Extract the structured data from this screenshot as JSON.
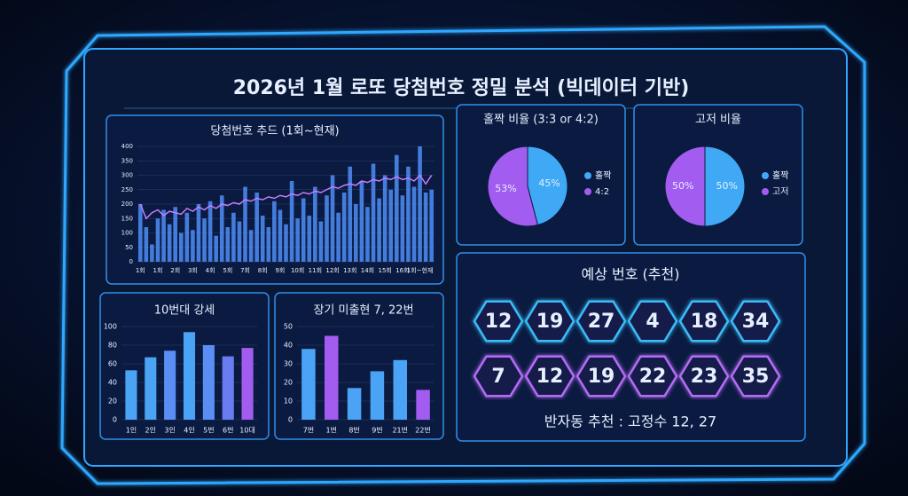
{
  "title": "2026년 1월 로또 당첨번호 정밀 분석 (빅데이터 기반)",
  "chart_data": [
    {
      "type": "combo",
      "title": "당첨번호 추드 (1회~현재)",
      "categories": [
        "1회",
        null,
        null,
        "1회",
        null,
        null,
        "2회",
        null,
        null,
        "3회",
        null,
        null,
        "4회",
        null,
        null,
        "5회",
        null,
        null,
        "7회",
        null,
        null,
        "8회",
        null,
        null,
        "9회",
        null,
        null,
        "10회",
        null,
        null,
        "11회",
        null,
        null,
        "12회",
        null,
        null,
        "13회",
        null,
        null,
        "14회",
        null,
        null,
        "15회",
        null,
        null,
        "16회",
        null,
        null,
        "1회~현재",
        null,
        null
      ],
      "series": [
        {
          "type": "bar",
          "color": "#4f8ef7",
          "values": [
            200,
            120,
            60,
            150,
            180,
            130,
            190,
            100,
            170,
            110,
            200,
            150,
            210,
            90,
            230,
            120,
            170,
            140,
            260,
            110,
            240,
            160,
            120,
            210,
            180,
            130,
            280,
            150,
            220,
            160,
            260,
            140,
            230,
            300,
            170,
            240,
            330,
            200,
            280,
            190,
            340,
            220,
            300,
            250,
            370,
            230,
            330,
            260,
            400,
            240,
            250
          ]
        },
        {
          "type": "line",
          "color": "#c77dff",
          "values": [
            200,
            150,
            170,
            180,
            160,
            175,
            170,
            165,
            185,
            175,
            190,
            180,
            195,
            185,
            200,
            195,
            205,
            200,
            215,
            210,
            220,
            215,
            225,
            220,
            230,
            225,
            235,
            230,
            240,
            235,
            245,
            240,
            250,
            260,
            255,
            265,
            270,
            265,
            280,
            275,
            285,
            280,
            290,
            285,
            295,
            285,
            290,
            280,
            300,
            270,
            300
          ]
        }
      ],
      "ylim": [
        0,
        400
      ],
      "yticks": [
        0,
        50,
        100,
        150,
        200,
        250,
        300,
        350,
        400
      ],
      "grid": true
    },
    {
      "type": "pie",
      "title": "홀짝 비율 (3:3 or 4:2)",
      "categories": [
        "홀짝",
        "4:2"
      ],
      "values": [
        45,
        53
      ],
      "value_labels": [
        "45%",
        "53%"
      ],
      "colors": [
        "#3fa9f5",
        "#a35cf0"
      ]
    },
    {
      "type": "pie",
      "title": "고저 비율",
      "categories": [
        "홀짝",
        "고저"
      ],
      "values": [
        50,
        50
      ],
      "value_labels": [
        "50%",
        "50%"
      ],
      "colors": [
        "#3fa9f5",
        "#a35cf0"
      ]
    },
    {
      "type": "bar",
      "title": "10번대 강세",
      "categories": [
        "1인",
        "2인",
        "3인",
        "4인",
        "5번",
        "6번",
        "10대"
      ],
      "values": [
        53,
        67,
        74,
        94,
        80,
        68,
        77
      ],
      "colors": [
        "#4aa3f5",
        "#4aa3f5",
        "#5b8ef5",
        "#4aa3f5",
        "#5b8ef5",
        "#6a7cf2",
        "#a35cf0"
      ],
      "ylim": [
        0,
        100
      ],
      "yticks": [
        0,
        20,
        40,
        60,
        80,
        100
      ],
      "grid": true
    },
    {
      "type": "bar",
      "title": "장기 미출현 7, 22번",
      "categories": [
        "7번",
        "1번",
        "8번",
        "9번",
        "21번",
        "22번"
      ],
      "values": [
        38,
        45,
        17,
        26,
        32,
        16
      ],
      "colors": [
        "#4aa3f5",
        "#a35cf0",
        "#4aa3f5",
        "#4aa3f5",
        "#4aa3f5",
        "#a35cf0"
      ],
      "ylim": [
        0,
        50
      ],
      "yticks": [
        0,
        10,
        20,
        30,
        40,
        50
      ],
      "grid": true
    }
  ],
  "prediction": {
    "title": "예상 번호 (추천)",
    "rows": [
      [
        12,
        19,
        27,
        4,
        18,
        34
      ],
      [
        7,
        12,
        19,
        22,
        23,
        35
      ]
    ],
    "colors": [
      "#38bdf8",
      "#b26cf5"
    ],
    "footer": "반자동 추천 : 고정수 12, 27"
  }
}
